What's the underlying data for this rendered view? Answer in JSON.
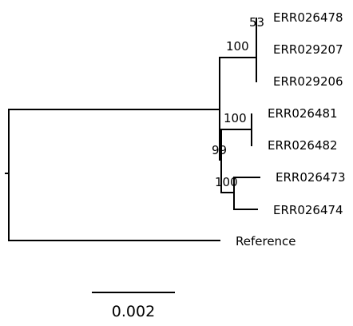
{
  "tips": [
    "ERR026478",
    "ERR029207",
    "ERR029206",
    "ERR026481",
    "ERR026482",
    "ERR026473",
    "ERR026474",
    "Reference"
  ],
  "support": [
    "53",
    "100",
    "100",
    "99",
    "100"
  ],
  "scale_bar": {
    "label": "0.002"
  }
}
